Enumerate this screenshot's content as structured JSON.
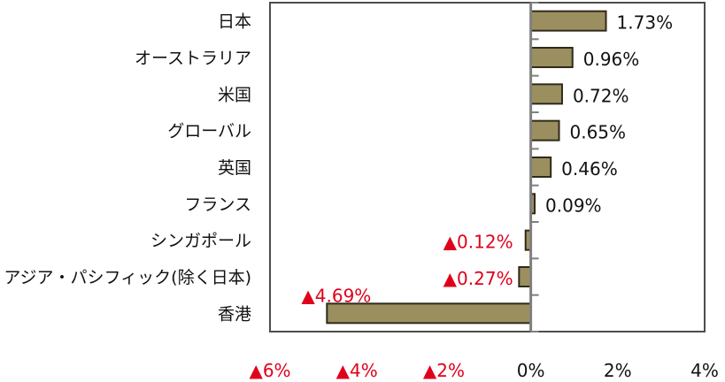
{
  "chart_data": {
    "type": "bar",
    "orientation": "horizontal",
    "title": "",
    "xlabel": "",
    "ylabel": "",
    "xlim": [
      -6,
      4
    ],
    "grid": false,
    "legend": "none",
    "categories": [
      "日本",
      "オーストラリア",
      "米国",
      "グローバル",
      "英国",
      "フランス",
      "シンガポール",
      "アジア・パシフィック(除く日本)",
      "香港"
    ],
    "values": [
      1.73,
      0.96,
      0.72,
      0.65,
      0.46,
      0.09,
      -0.12,
      -0.27,
      -4.69
    ],
    "data_labels": [
      "1.73%",
      "0.96%",
      "0.72%",
      "0.65%",
      "0.46%",
      "0.09%",
      "▲0.12%",
      "▲0.27%",
      "▲4.69%"
    ],
    "x_ticks": [
      -6,
      -4,
      -2,
      0,
      2,
      4
    ],
    "x_tick_labels": [
      "▲6%",
      "▲4%",
      "▲2%",
      "0%",
      "2%",
      "4%"
    ],
    "colors": {
      "bar_fill": "#9c8f5f",
      "bar_stroke": "#2e2a1a",
      "positive_label": "#111111",
      "negative_label": "#e0001b",
      "axis": "#7f7f7f",
      "frame": "#4d4d4d"
    }
  }
}
